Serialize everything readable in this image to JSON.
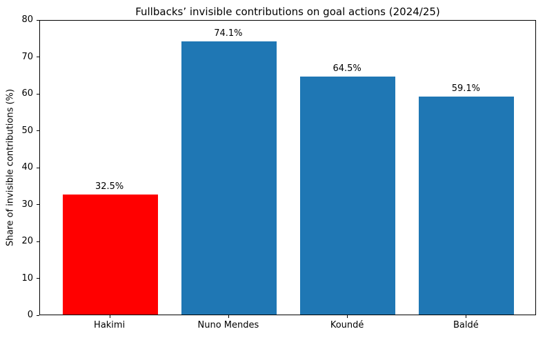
{
  "chart_data": {
    "type": "bar",
    "title": "Fullbacks’ invisible contributions on goal actions (2024/25)",
    "xlabel": "",
    "ylabel": "Share of invisible contributions (%)",
    "categories": [
      "Hakimi",
      "Nuno Mendes",
      "Koundé",
      "Baldé"
    ],
    "values": [
      32.5,
      74.1,
      64.5,
      59.1
    ],
    "bar_labels": [
      "32.5%",
      "74.1%",
      "64.5%",
      "59.1%"
    ],
    "bar_colors": [
      "#ff0000",
      "#1f77b4",
      "#1f77b4",
      "#1f77b4"
    ],
    "ylim": [
      0,
      80
    ],
    "yticks": [
      "0",
      "10",
      "20",
      "30",
      "40",
      "50",
      "60",
      "70",
      "80"
    ],
    "xlim": [
      -0.59,
      3.59
    ],
    "bar_width": 0.8,
    "grid": false,
    "legend": "none",
    "highlighted_category": "Hakimi"
  }
}
